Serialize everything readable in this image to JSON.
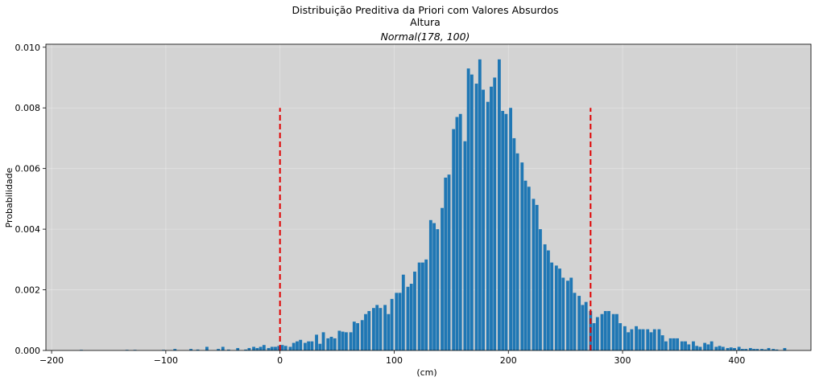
{
  "chart_data": {
    "type": "bar",
    "title": "Distribuição Preditiva da Priori com Valores Absurdos",
    "subtitle": "Altura",
    "subtitle2": "Normal(178, 100)",
    "xlabel": "(cm)",
    "ylabel": "Probabilidade",
    "xlim": [
      -205,
      465
    ],
    "ylim": [
      0,
      0.0101
    ],
    "x_ticks": [
      -200,
      -100,
      0,
      100,
      200,
      300,
      400
    ],
    "x_tick_labels": [
      "−200",
      "−100",
      "0",
      "100",
      "200",
      "300",
      "400"
    ],
    "y_ticks": [
      0.0,
      0.002,
      0.004,
      0.006,
      0.008,
      0.01
    ],
    "y_tick_labels": [
      "0.000",
      "0.002",
      "0.004",
      "0.006",
      "0.008",
      "0.010"
    ],
    "grid": true,
    "background_color": "#d3d3d3",
    "bar_color": "#1f77b4",
    "reference_line_color": "#e00000",
    "bin_width": 3.3,
    "bars": [
      [
        -174,
        2e-05
      ],
      [
        -134,
        2e-05
      ],
      [
        -127,
        2e-05
      ],
      [
        -102,
        2e-05
      ],
      [
        -92,
        5e-05
      ],
      [
        -78,
        5e-05
      ],
      [
        -72,
        3e-05
      ],
      [
        -64,
        0.00012
      ],
      [
        -54,
        5e-05
      ],
      [
        -50,
        0.00012
      ],
      [
        -45,
        3e-05
      ],
      [
        -37,
        8e-05
      ],
      [
        -30,
        3e-05
      ],
      [
        -27,
        8e-05
      ],
      [
        -23,
        0.00012
      ],
      [
        -20,
        8e-05
      ],
      [
        -17,
        0.00012
      ],
      [
        -14,
        0.00018
      ],
      [
        -10,
        8e-05
      ],
      [
        -7,
        0.00012
      ],
      [
        -4,
        0.00012
      ],
      [
        -1,
        0.00015
      ],
      [
        2,
        0.00018
      ],
      [
        5,
        0.00015
      ],
      [
        9,
        0.00012
      ],
      [
        12,
        0.00025
      ],
      [
        15,
        0.0003
      ],
      [
        18,
        0.00035
      ],
      [
        22,
        0.00025
      ],
      [
        25,
        0.0003
      ],
      [
        28,
        0.0003
      ],
      [
        32,
        0.00052
      ],
      [
        35,
        0.00022
      ],
      [
        38,
        0.0006
      ],
      [
        42,
        0.0004
      ],
      [
        45,
        0.00045
      ],
      [
        48,
        0.0004
      ],
      [
        52,
        0.00065
      ],
      [
        55,
        0.00062
      ],
      [
        58,
        0.0006
      ],
      [
        62,
        0.0006
      ],
      [
        65,
        0.00095
      ],
      [
        68,
        0.0009
      ],
      [
        72,
        0.001
      ],
      [
        75,
        0.0012
      ],
      [
        78,
        0.0013
      ],
      [
        82,
        0.0014
      ],
      [
        85,
        0.0015
      ],
      [
        88,
        0.0014
      ],
      [
        92,
        0.0015
      ],
      [
        95,
        0.0012
      ],
      [
        98,
        0.0017
      ],
      [
        102,
        0.0019
      ],
      [
        105,
        0.0019
      ],
      [
        108,
        0.0025
      ],
      [
        112,
        0.0021
      ],
      [
        115,
        0.0022
      ],
      [
        118,
        0.0026
      ],
      [
        122,
        0.0029
      ],
      [
        125,
        0.0029
      ],
      [
        128,
        0.003
      ],
      [
        132,
        0.0043
      ],
      [
        135,
        0.0042
      ],
      [
        138,
        0.004
      ],
      [
        142,
        0.0047
      ],
      [
        145,
        0.0057
      ],
      [
        148,
        0.0058
      ],
      [
        152,
        0.0073
      ],
      [
        155,
        0.0077
      ],
      [
        158,
        0.0078
      ],
      [
        162,
        0.0069
      ],
      [
        165,
        0.0093
      ],
      [
        168,
        0.0091
      ],
      [
        172,
        0.0088
      ],
      [
        175,
        0.0096
      ],
      [
        178,
        0.0086
      ],
      [
        182,
        0.0082
      ],
      [
        185,
        0.0087
      ],
      [
        188,
        0.009
      ],
      [
        192,
        0.0096
      ],
      [
        195,
        0.0079
      ],
      [
        198,
        0.0078
      ],
      [
        202,
        0.008
      ],
      [
        205,
        0.007
      ],
      [
        208,
        0.0065
      ],
      [
        212,
        0.0062
      ],
      [
        215,
        0.0056
      ],
      [
        218,
        0.0054
      ],
      [
        222,
        0.005
      ],
      [
        225,
        0.0048
      ],
      [
        228,
        0.004
      ],
      [
        232,
        0.0035
      ],
      [
        235,
        0.0033
      ],
      [
        238,
        0.0029
      ],
      [
        242,
        0.0028
      ],
      [
        245,
        0.0027
      ],
      [
        248,
        0.0024
      ],
      [
        252,
        0.0023
      ],
      [
        255,
        0.0024
      ],
      [
        258,
        0.0019
      ],
      [
        262,
        0.0018
      ],
      [
        265,
        0.0015
      ],
      [
        268,
        0.0016
      ],
      [
        272,
        0.0013
      ],
      [
        275,
        0.0009
      ],
      [
        278,
        0.0011
      ],
      [
        282,
        0.0012
      ],
      [
        285,
        0.0013
      ],
      [
        288,
        0.0013
      ],
      [
        292,
        0.0012
      ],
      [
        295,
        0.0012
      ],
      [
        298,
        0.0009
      ],
      [
        302,
        0.0008
      ],
      [
        305,
        0.0006
      ],
      [
        308,
        0.0007
      ],
      [
        312,
        0.0008
      ],
      [
        315,
        0.0007
      ],
      [
        318,
        0.0007
      ],
      [
        322,
        0.0007
      ],
      [
        325,
        0.0006
      ],
      [
        328,
        0.0007
      ],
      [
        332,
        0.0007
      ],
      [
        335,
        0.0005
      ],
      [
        338,
        0.0003
      ],
      [
        342,
        0.0004
      ],
      [
        345,
        0.0004
      ],
      [
        348,
        0.0004
      ],
      [
        352,
        0.0003
      ],
      [
        355,
        0.0003
      ],
      [
        358,
        0.0002
      ],
      [
        362,
        0.0003
      ],
      [
        365,
        0.00015
      ],
      [
        368,
        0.00012
      ],
      [
        372,
        0.00025
      ],
      [
        375,
        0.0002
      ],
      [
        378,
        0.0003
      ],
      [
        382,
        0.00012
      ],
      [
        385,
        0.00015
      ],
      [
        388,
        0.00012
      ],
      [
        392,
        8e-05
      ],
      [
        395,
        0.0001
      ],
      [
        398,
        8e-05
      ],
      [
        402,
        0.00012
      ],
      [
        405,
        5e-05
      ],
      [
        408,
        5e-05
      ],
      [
        412,
        8e-05
      ],
      [
        415,
        5e-05
      ],
      [
        418,
        5e-05
      ],
      [
        422,
        5e-05
      ],
      [
        425,
        3e-05
      ],
      [
        428,
        8e-05
      ],
      [
        432,
        5e-05
      ],
      [
        435,
        3e-05
      ],
      [
        442,
        8e-05
      ]
    ],
    "reference_lines": [
      {
        "x": 0,
        "y_max": 0.008
      },
      {
        "x": 272,
        "y_max": 0.008
      }
    ]
  }
}
